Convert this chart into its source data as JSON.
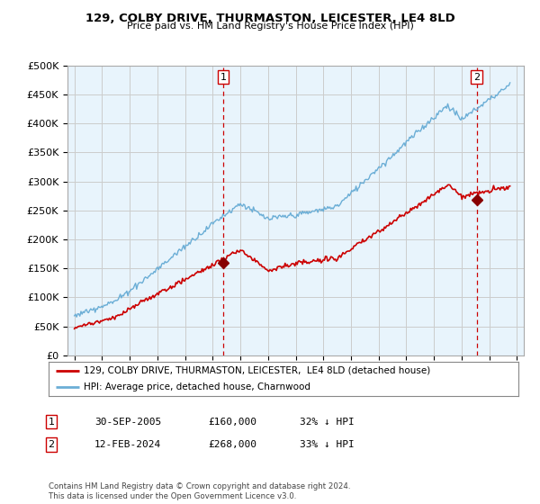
{
  "title1": "129, COLBY DRIVE, THURMASTON, LEICESTER, LE4 8LD",
  "title2": "Price paid vs. HM Land Registry's House Price Index (HPI)",
  "ylabel_ticks": [
    "£0",
    "£50K",
    "£100K",
    "£150K",
    "£200K",
    "£250K",
    "£300K",
    "£350K",
    "£400K",
    "£450K",
    "£500K"
  ],
  "ytick_values": [
    0,
    50000,
    100000,
    150000,
    200000,
    250000,
    300000,
    350000,
    400000,
    450000,
    500000
  ],
  "xlim_start": 1994.5,
  "xlim_end": 2027.5,
  "ylim": [
    0,
    500000
  ],
  "marker1_x": 2005.75,
  "marker1_y": 160000,
  "marker1_label": "1",
  "marker2_x": 2024.1,
  "marker2_y": 268000,
  "marker2_label": "2",
  "vline1_x": 2005.75,
  "vline2_x": 2024.1,
  "legend_line1": "129, COLBY DRIVE, THURMASTON, LEICESTER,  LE4 8LD (detached house)",
  "legend_line2": "HPI: Average price, detached house, Charnwood",
  "table_row1": [
    "1",
    "30-SEP-2005",
    "£160,000",
    "32% ↓ HPI"
  ],
  "table_row2": [
    "2",
    "12-FEB-2024",
    "£268,000",
    "33% ↓ HPI"
  ],
  "footer": "Contains HM Land Registry data © Crown copyright and database right 2024.\nThis data is licensed under the Open Government Licence v3.0.",
  "hpi_color": "#6baed6",
  "price_color": "#cc0000",
  "vline_color": "#cc0000",
  "bg_color": "#ffffff",
  "grid_color": "#cccccc",
  "marker_color": "#880000"
}
